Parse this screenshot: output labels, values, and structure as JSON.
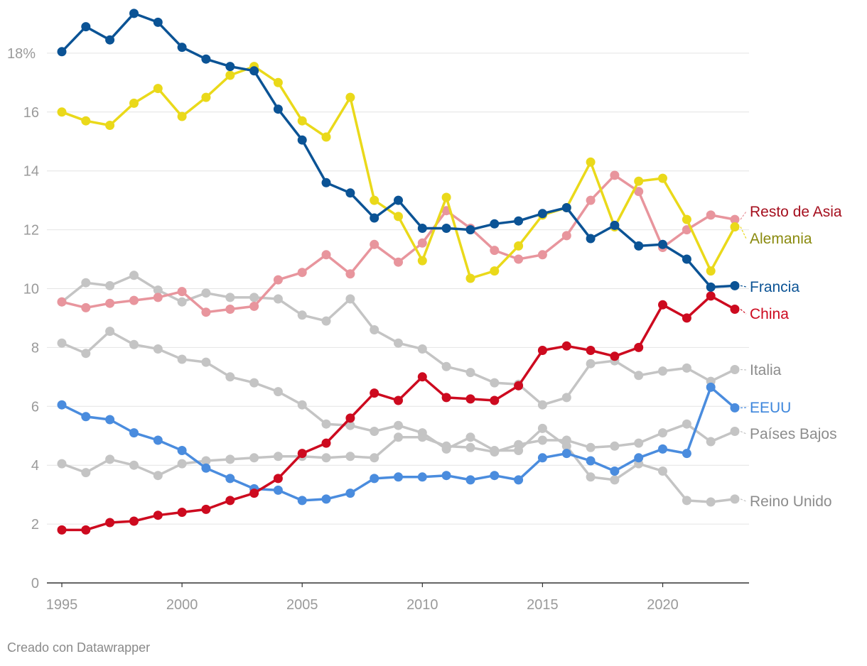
{
  "credit": "Creado con Datawrapper",
  "chart_data": {
    "type": "line",
    "title": "",
    "xlabel": "",
    "ylabel": "",
    "y_unit_suffix": "%",
    "xlim": [
      1995,
      2023
    ],
    "ylim": [
      0,
      19.5
    ],
    "x_ticks": [
      1995,
      2000,
      2005,
      2010,
      2015,
      2020
    ],
    "y_ticks": [
      0,
      2,
      4,
      6,
      8,
      10,
      12,
      14,
      16,
      18
    ],
    "grid": true,
    "legend": "direct labels at line ends (right)",
    "x": [
      1995,
      1996,
      1997,
      1998,
      1999,
      2000,
      2001,
      2002,
      2003,
      2004,
      2005,
      2006,
      2007,
      2008,
      2009,
      2010,
      2011,
      2012,
      2013,
      2014,
      2015,
      2016,
      2017,
      2018,
      2019,
      2020,
      2021,
      2022,
      2023
    ],
    "series": [
      {
        "name": "Italia",
        "color": "#c4c4c4",
        "label_color": "#8c8c8c",
        "values": [
          9.55,
          10.2,
          10.1,
          10.45,
          9.95,
          9.55,
          9.85,
          9.7,
          9.7,
          9.65,
          9.1,
          8.9,
          9.65,
          8.6,
          8.15,
          7.95,
          7.35,
          7.15,
          6.8,
          6.75,
          6.05,
          6.3,
          7.45,
          7.55,
          7.05,
          7.2,
          7.3,
          6.85,
          7.25
        ]
      },
      {
        "name": "Reino Unido",
        "color": "#c4c4c4",
        "label_color": "#8c8c8c",
        "values": [
          8.15,
          7.8,
          8.55,
          8.1,
          7.95,
          7.6,
          7.5,
          7.0,
          6.8,
          6.5,
          6.05,
          5.4,
          5.35,
          5.15,
          5.35,
          5.1,
          4.55,
          4.95,
          4.5,
          4.5,
          5.25,
          4.65,
          3.6,
          3.5,
          4.05,
          3.8,
          2.8,
          2.75,
          2.85
        ]
      },
      {
        "name": "Países Bajos",
        "color": "#c4c4c4",
        "label_color": "#8c8c8c",
        "values": [
          4.05,
          3.75,
          4.2,
          4.0,
          3.65,
          4.05,
          4.15,
          4.2,
          4.25,
          4.3,
          4.3,
          4.25,
          4.3,
          4.25,
          4.95,
          4.95,
          4.65,
          4.6,
          4.45,
          4.7,
          4.85,
          4.85,
          4.6,
          4.65,
          4.75,
          5.1,
          5.4,
          4.8,
          5.15
        ]
      },
      {
        "name": "Resto de Asia",
        "color": "#e8959d",
        "label_color": "#a50f1e",
        "values": [
          9.55,
          9.35,
          9.5,
          9.6,
          9.7,
          9.9,
          9.2,
          9.3,
          9.4,
          10.3,
          10.55,
          11.15,
          10.5,
          11.5,
          10.9,
          11.55,
          12.65,
          12.05,
          11.3,
          11.0,
          11.15,
          11.8,
          13.0,
          13.85,
          13.3,
          11.4,
          12.0,
          12.5,
          12.35
        ]
      },
      {
        "name": "Alemania",
        "color": "#ead91a",
        "label_color": "#8a8a0e",
        "values": [
          16.0,
          15.7,
          15.55,
          16.3,
          16.8,
          15.85,
          16.5,
          17.25,
          17.55,
          17.0,
          15.7,
          15.15,
          16.5,
          13.0,
          12.45,
          10.95,
          13.1,
          10.35,
          10.6,
          11.45,
          12.5,
          12.75,
          14.3,
          12.1,
          13.65,
          13.75,
          12.35,
          10.6,
          12.1
        ]
      },
      {
        "name": "EEUU",
        "color": "#4a8cde",
        "label_color": "#3d86dc",
        "values": [
          6.05,
          5.65,
          5.55,
          5.1,
          4.85,
          4.5,
          3.9,
          3.55,
          3.2,
          3.15,
          2.8,
          2.85,
          3.05,
          3.55,
          3.6,
          3.6,
          3.65,
          3.5,
          3.65,
          3.5,
          4.25,
          4.4,
          4.15,
          3.8,
          4.25,
          4.55,
          4.4,
          6.65,
          5.95
        ]
      },
      {
        "name": "China",
        "color": "#cd0a1f",
        "label_color": "#cd0a1f",
        "values": [
          1.8,
          1.8,
          2.05,
          2.1,
          2.3,
          2.4,
          2.5,
          2.8,
          3.05,
          3.55,
          4.4,
          4.75,
          5.6,
          6.45,
          6.2,
          7.0,
          6.3,
          6.25,
          6.2,
          6.7,
          7.9,
          8.05,
          7.9,
          7.7,
          8.0,
          9.45,
          9.0,
          9.75,
          9.3
        ]
      },
      {
        "name": "Francia",
        "color": "#0b5395",
        "label_color": "#0b5395",
        "values": [
          18.05,
          18.9,
          18.45,
          19.35,
          19.05,
          18.2,
          17.8,
          17.55,
          17.4,
          16.1,
          15.05,
          13.6,
          13.25,
          12.4,
          13.0,
          12.05,
          12.05,
          12.0,
          12.2,
          12.3,
          12.55,
          12.75,
          11.7,
          12.15,
          11.45,
          11.5,
          11.0,
          10.05,
          10.1
        ]
      }
    ]
  }
}
